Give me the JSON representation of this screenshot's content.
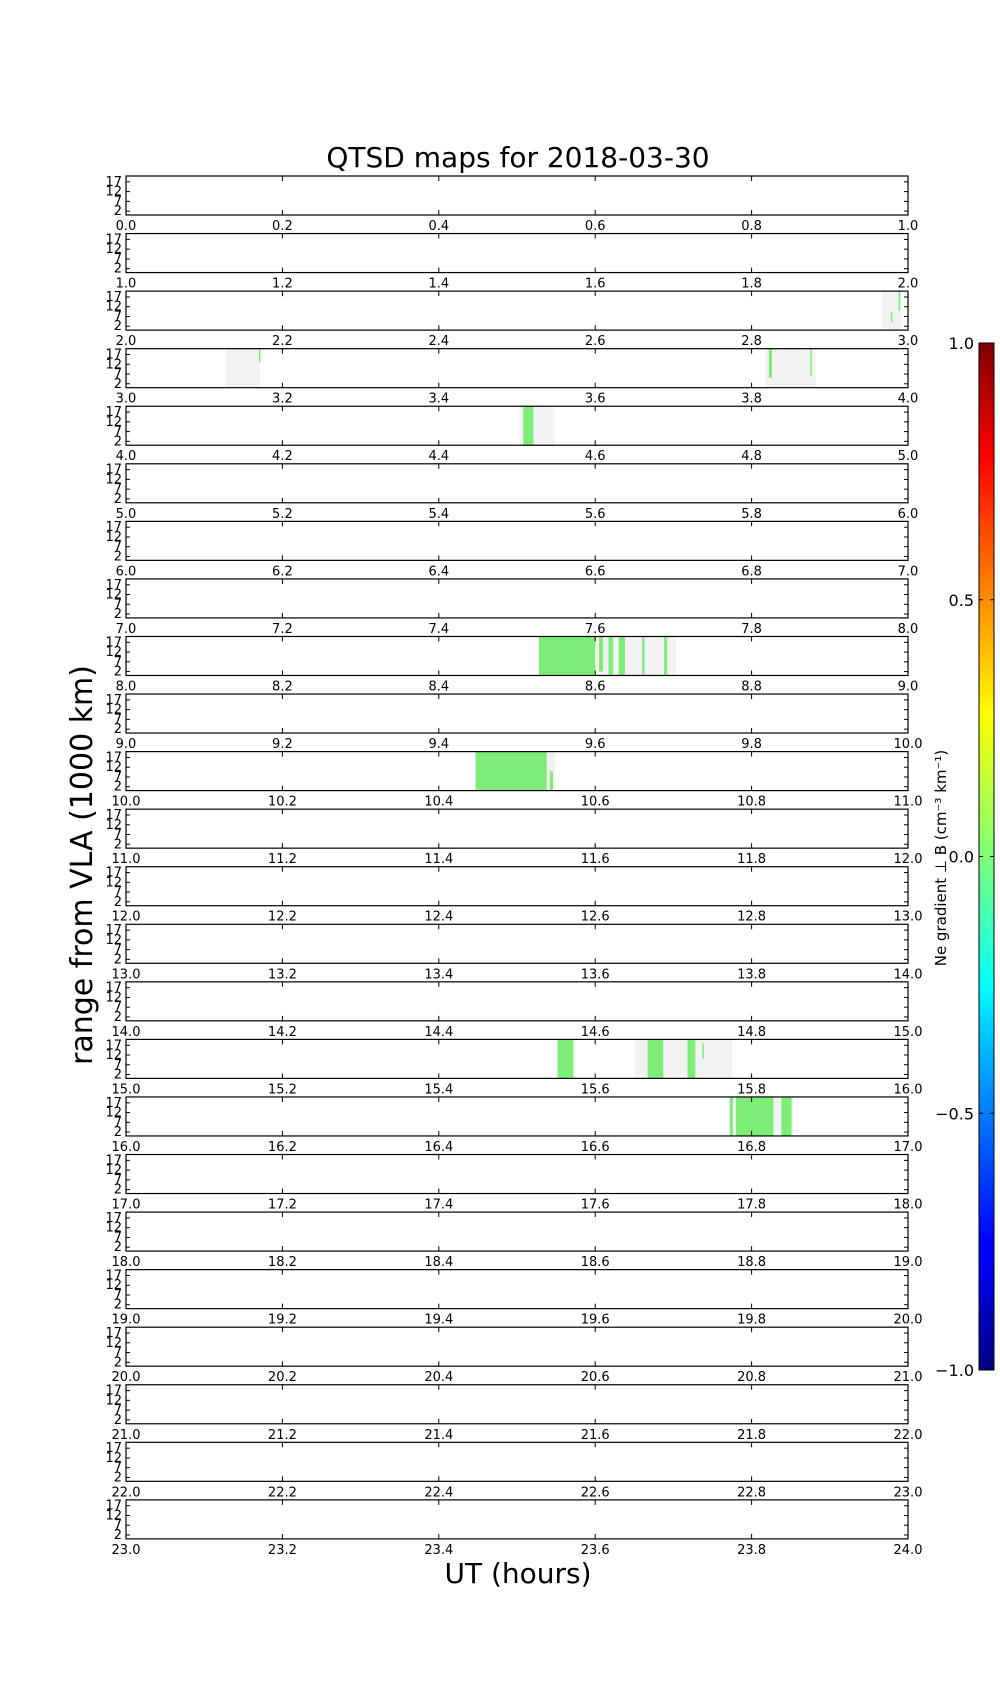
{
  "chart_data": {
    "type": "heatmap",
    "title": "QTSD maps for 2018-03-30",
    "xlabel": "UT (hours)",
    "ylabel": "range from VLA (1000 km)",
    "y_ticks": [
      "17",
      "12",
      "7",
      "2"
    ],
    "ylim": [
      0,
      20
    ],
    "rows": [
      {
        "range": [
          0,
          1
        ],
        "xticks": [
          "0.0",
          "0.2",
          "0.4",
          "0.6",
          "0.8",
          "1.0"
        ],
        "coverage": [],
        "green": []
      },
      {
        "range": [
          1,
          2
        ],
        "xticks": [
          "1.0",
          "1.2",
          "1.4",
          "1.6",
          "1.8",
          "2.0"
        ],
        "coverage": [],
        "green": []
      },
      {
        "range": [
          2,
          3
        ],
        "xticks": [
          "2.0",
          "2.2",
          "2.4",
          "2.6",
          "2.8",
          "3.0"
        ],
        "coverage": [
          [
            2.967,
            2.992
          ]
        ],
        "green": [
          [
            2.978,
            2.98,
            4,
            9
          ],
          [
            2.988,
            2.99,
            10,
            20
          ]
        ]
      },
      {
        "range": [
          3,
          4
        ],
        "xticks": [
          "3.0",
          "3.2",
          "3.4",
          "3.6",
          "3.8",
          "4.0"
        ],
        "coverage": [
          [
            3.128,
            3.171
          ],
          [
            3.818,
            3.882
          ]
        ],
        "green": [
          [
            3.17,
            3.172,
            13,
            20
          ],
          [
            3.822,
            3.826,
            5,
            20
          ],
          [
            3.875,
            3.877,
            6,
            20
          ]
        ]
      },
      {
        "range": [
          4,
          5
        ],
        "xticks": [
          "4.0",
          "4.2",
          "4.4",
          "4.6",
          "4.8",
          "5.0"
        ],
        "coverage": [
          [
            4.503,
            4.548
          ]
        ],
        "green": [
          [
            4.508,
            4.521,
            0,
            20
          ]
        ]
      },
      {
        "range": [
          5,
          6
        ],
        "xticks": [
          "5.0",
          "5.2",
          "5.4",
          "5.6",
          "5.8",
          "6.0"
        ],
        "coverage": [],
        "green": []
      },
      {
        "range": [
          6,
          7
        ],
        "xticks": [
          "6.0",
          "6.2",
          "6.4",
          "6.6",
          "6.8",
          "7.0"
        ],
        "coverage": [],
        "green": []
      },
      {
        "range": [
          7,
          8
        ],
        "xticks": [
          "7.0",
          "7.2",
          "7.4",
          "7.6",
          "7.8",
          "8.0"
        ],
        "coverage": [],
        "green": []
      },
      {
        "range": [
          8,
          9
        ],
        "xticks": [
          "8.0",
          "8.2",
          "8.4",
          "8.6",
          "8.8",
          "9.0"
        ],
        "coverage": [
          [
            8.528,
            8.703
          ]
        ],
        "green": [
          [
            8.528,
            8.6,
            0,
            20
          ],
          [
            8.605,
            8.61,
            2,
            20
          ],
          [
            8.617,
            8.623,
            0,
            20
          ],
          [
            8.63,
            8.638,
            0,
            20
          ],
          [
            8.66,
            8.663,
            0,
            20
          ],
          [
            8.688,
            8.692,
            0,
            20
          ]
        ]
      },
      {
        "range": [
          9,
          10
        ],
        "xticks": [
          "9.0",
          "9.2",
          "9.4",
          "9.6",
          "9.8",
          "10.0"
        ],
        "coverage": [],
        "green": []
      },
      {
        "range": [
          10,
          11
        ],
        "xticks": [
          "10.0",
          "10.2",
          "10.4",
          "10.6",
          "10.8",
          "11.0"
        ],
        "coverage": [
          [
            10.447,
            10.549
          ]
        ],
        "green": [
          [
            10.447,
            10.538,
            0,
            20
          ],
          [
            10.542,
            10.546,
            0,
            10
          ]
        ]
      },
      {
        "range": [
          11,
          12
        ],
        "xticks": [
          "11.0",
          "11.2",
          "11.4",
          "11.6",
          "11.8",
          "12.0"
        ],
        "coverage": [],
        "green": []
      },
      {
        "range": [
          12,
          13
        ],
        "xticks": [
          "12.0",
          "12.2",
          "12.4",
          "12.6",
          "12.8",
          "13.0"
        ],
        "coverage": [],
        "green": []
      },
      {
        "range": [
          13,
          14
        ],
        "xticks": [
          "13.0",
          "13.2",
          "13.4",
          "13.6",
          "13.8",
          "14.0"
        ],
        "coverage": [],
        "green": []
      },
      {
        "range": [
          14,
          15
        ],
        "xticks": [
          "14.0",
          "14.2",
          "14.4",
          "14.6",
          "14.8",
          "15.0"
        ],
        "coverage": [],
        "green": []
      },
      {
        "range": [
          15,
          16
        ],
        "xticks": [
          "15.0",
          "15.2",
          "15.4",
          "15.6",
          "15.8",
          "16.0"
        ],
        "coverage": [
          [
            15.55,
            15.575
          ],
          [
            15.651,
            15.775
          ]
        ],
        "green": [
          [
            15.552,
            15.572,
            0,
            20
          ],
          [
            15.667,
            15.687,
            0,
            20
          ],
          [
            15.718,
            15.728,
            0,
            20
          ],
          [
            15.737,
            15.739,
            10,
            18
          ]
        ]
      },
      {
        "range": [
          16,
          17
        ],
        "xticks": [
          "16.0",
          "16.2",
          "16.4",
          "16.6",
          "16.8",
          "17.0"
        ],
        "coverage": [
          [
            16.772,
            16.853
          ]
        ],
        "green": [
          [
            16.772,
            16.776,
            0,
            20
          ],
          [
            16.78,
            16.828,
            0,
            20
          ],
          [
            16.838,
            16.851,
            0,
            20
          ]
        ]
      },
      {
        "range": [
          17,
          18
        ],
        "xticks": [
          "17.0",
          "17.2",
          "17.4",
          "17.6",
          "17.8",
          "18.0"
        ],
        "coverage": [],
        "green": []
      },
      {
        "range": [
          18,
          19
        ],
        "xticks": [
          "18.0",
          "18.2",
          "18.4",
          "18.6",
          "18.8",
          "19.0"
        ],
        "coverage": [],
        "green": []
      },
      {
        "range": [
          19,
          20
        ],
        "xticks": [
          "19.0",
          "19.2",
          "19.4",
          "19.6",
          "19.8",
          "20.0"
        ],
        "coverage": [],
        "green": []
      },
      {
        "range": [
          20,
          21
        ],
        "xticks": [
          "20.0",
          "20.2",
          "20.4",
          "20.6",
          "20.8",
          "21.0"
        ],
        "coverage": [],
        "green": []
      },
      {
        "range": [
          21,
          22
        ],
        "xticks": [
          "21.0",
          "21.2",
          "21.4",
          "21.6",
          "21.8",
          "22.0"
        ],
        "coverage": [],
        "green": []
      },
      {
        "range": [
          22,
          23
        ],
        "xticks": [
          "22.0",
          "22.2",
          "22.4",
          "22.6",
          "22.8",
          "23.0"
        ],
        "coverage": [],
        "green": []
      },
      {
        "range": [
          23,
          24
        ],
        "xticks": [
          "23.0",
          "23.2",
          "23.4",
          "23.6",
          "23.8",
          "24.0"
        ],
        "coverage": [],
        "green": []
      }
    ],
    "colorbar": {
      "range": [
        -1.0,
        1.0
      ],
      "ticks": [
        "1.0",
        "0.5",
        "0.0",
        "−0.5",
        "−1.0"
      ],
      "label": "Ne gradient ⊥ B (cm⁻³ km⁻¹)",
      "colormap": "jet"
    },
    "colors": {
      "coverage": "#f2f2f2",
      "green": "#7ded78",
      "axes": "#000000"
    }
  }
}
